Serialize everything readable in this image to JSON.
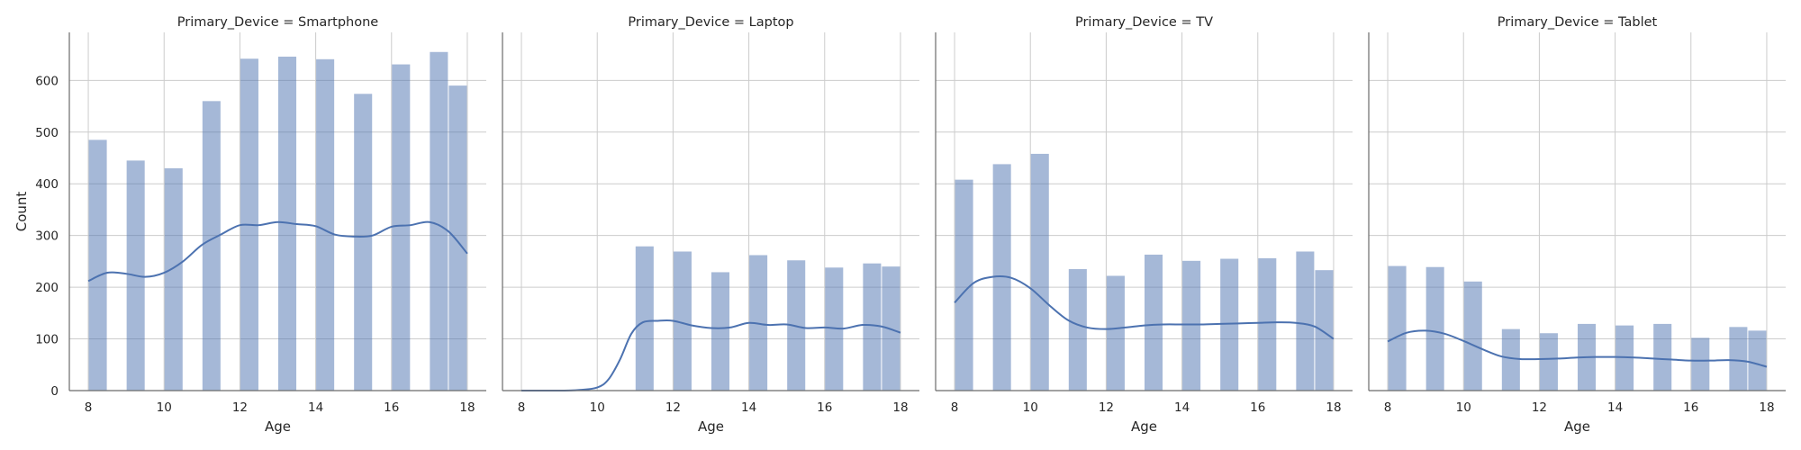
{
  "chart_data": {
    "type": "bar",
    "facet_variable": "Primary_Device",
    "xlabel": "Age",
    "ylabel": "Count",
    "xlim": [
      7.5,
      18.5
    ],
    "ylim": [
      0,
      690
    ],
    "xticks": [
      8,
      10,
      12,
      14,
      16,
      18
    ],
    "yticks": [
      0,
      100,
      200,
      300,
      400,
      500,
      600
    ],
    "grid": true,
    "bar_color": "#4c72b0",
    "bar_opacity": 0.5,
    "kde_color": "#4c72b0",
    "bin_edges": [
      8,
      8.5,
      9,
      9.5,
      10,
      10.5,
      11,
      11.5,
      12,
      12.5,
      13,
      13.5,
      14,
      14.5,
      15,
      15.5,
      16,
      16.5,
      17,
      17.5,
      18
    ],
    "facets": [
      {
        "title": "Primary_Device = Smartphone",
        "bins": [
          {
            "x0": 8.0,
            "x1": 8.5,
            "count": 485
          },
          {
            "x0": 9.0,
            "x1": 9.5,
            "count": 445
          },
          {
            "x0": 10.0,
            "x1": 10.5,
            "count": 430
          },
          {
            "x0": 11.0,
            "x1": 11.5,
            "count": 560
          },
          {
            "x0": 12.0,
            "x1": 12.5,
            "count": 642
          },
          {
            "x0": 13.0,
            "x1": 13.5,
            "count": 646
          },
          {
            "x0": 14.0,
            "x1": 14.5,
            "count": 641
          },
          {
            "x0": 15.0,
            "x1": 15.5,
            "count": 574
          },
          {
            "x0": 16.0,
            "x1": 16.5,
            "count": 631
          },
          {
            "x0": 17.0,
            "x1": 17.5,
            "count": 655
          },
          {
            "x0": 17.5,
            "x1": 18.0,
            "count": 590
          }
        ],
        "kde": {
          "x": [
            8.0,
            8.5,
            9.0,
            9.5,
            10.0,
            10.5,
            11.0,
            11.5,
            12.0,
            12.5,
            13.0,
            13.5,
            14.0,
            14.5,
            15.0,
            15.5,
            16.0,
            16.5,
            17.0,
            17.5,
            18.0
          ],
          "y": [
            212,
            228,
            226,
            220,
            228,
            250,
            282,
            302,
            320,
            320,
            326,
            322,
            318,
            302,
            298,
            300,
            317,
            320,
            326,
            308,
            265
          ]
        }
      },
      {
        "title": "Primary_Device = Laptop",
        "bins": [
          {
            "x0": 11.0,
            "x1": 11.5,
            "count": 279
          },
          {
            "x0": 12.0,
            "x1": 12.5,
            "count": 269
          },
          {
            "x0": 13.0,
            "x1": 13.5,
            "count": 229
          },
          {
            "x0": 14.0,
            "x1": 14.5,
            "count": 262
          },
          {
            "x0": 15.0,
            "x1": 15.5,
            "count": 252
          },
          {
            "x0": 16.0,
            "x1": 16.5,
            "count": 238
          },
          {
            "x0": 17.0,
            "x1": 17.5,
            "count": 246
          },
          {
            "x0": 17.5,
            "x1": 18.0,
            "count": 240
          }
        ],
        "kde": {
          "x": [
            8.0,
            9.0,
            9.5,
            10.0,
            10.3,
            10.6,
            10.9,
            11.2,
            11.6,
            12.0,
            12.5,
            13.0,
            13.5,
            14.0,
            14.5,
            15.0,
            15.5,
            16.0,
            16.5,
            17.0,
            17.5,
            18.0
          ],
          "y": [
            0,
            0,
            1,
            6,
            22,
            60,
            110,
            132,
            135,
            135,
            126,
            121,
            122,
            131,
            127,
            128,
            121,
            122,
            120,
            127,
            124,
            112
          ]
        }
      },
      {
        "title": "Primary_Device = TV",
        "bins": [
          {
            "x0": 8.0,
            "x1": 8.5,
            "count": 408
          },
          {
            "x0": 9.0,
            "x1": 9.5,
            "count": 438
          },
          {
            "x0": 10.0,
            "x1": 10.5,
            "count": 458
          },
          {
            "x0": 11.0,
            "x1": 11.5,
            "count": 235
          },
          {
            "x0": 12.0,
            "x1": 12.5,
            "count": 222
          },
          {
            "x0": 13.0,
            "x1": 13.5,
            "count": 263
          },
          {
            "x0": 14.0,
            "x1": 14.5,
            "count": 251
          },
          {
            "x0": 15.0,
            "x1": 15.5,
            "count": 255
          },
          {
            "x0": 16.0,
            "x1": 16.5,
            "count": 256
          },
          {
            "x0": 17.0,
            "x1": 17.5,
            "count": 269
          },
          {
            "x0": 17.5,
            "x1": 18.0,
            "count": 233
          }
        ],
        "kde": {
          "x": [
            8.0,
            8.5,
            9.0,
            9.5,
            10.0,
            10.5,
            11.0,
            11.5,
            12.0,
            12.5,
            13.0,
            13.5,
            14.0,
            14.5,
            15.0,
            15.5,
            16.0,
            16.5,
            17.0,
            17.5,
            18.0
          ],
          "y": [
            170,
            208,
            220,
            218,
            198,
            165,
            136,
            122,
            119,
            122,
            126,
            128,
            128,
            128,
            129,
            130,
            131,
            132,
            131,
            124,
            100
          ]
        }
      },
      {
        "title": "Primary_Device = Tablet",
        "bins": [
          {
            "x0": 8.0,
            "x1": 8.5,
            "count": 241
          },
          {
            "x0": 9.0,
            "x1": 9.5,
            "count": 239
          },
          {
            "x0": 10.0,
            "x1": 10.5,
            "count": 211
          },
          {
            "x0": 11.0,
            "x1": 11.5,
            "count": 119
          },
          {
            "x0": 12.0,
            "x1": 12.5,
            "count": 111
          },
          {
            "x0": 13.0,
            "x1": 13.5,
            "count": 129
          },
          {
            "x0": 14.0,
            "x1": 14.5,
            "count": 126
          },
          {
            "x0": 15.0,
            "x1": 15.5,
            "count": 129
          },
          {
            "x0": 16.0,
            "x1": 16.5,
            "count": 102
          },
          {
            "x0": 17.0,
            "x1": 17.5,
            "count": 123
          },
          {
            "x0": 17.5,
            "x1": 18.0,
            "count": 116
          }
        ],
        "kde": {
          "x": [
            8.0,
            8.5,
            9.0,
            9.5,
            10.0,
            10.5,
            11.0,
            11.5,
            12.0,
            12.5,
            13.0,
            13.5,
            14.0,
            14.5,
            15.0,
            15.5,
            16.0,
            16.5,
            17.0,
            17.5,
            18.0
          ],
          "y": [
            95,
            112,
            116,
            110,
            96,
            80,
            66,
            61,
            61,
            62,
            64,
            65,
            65,
            64,
            62,
            60,
            58,
            58,
            59,
            56,
            46
          ]
        }
      }
    ]
  }
}
